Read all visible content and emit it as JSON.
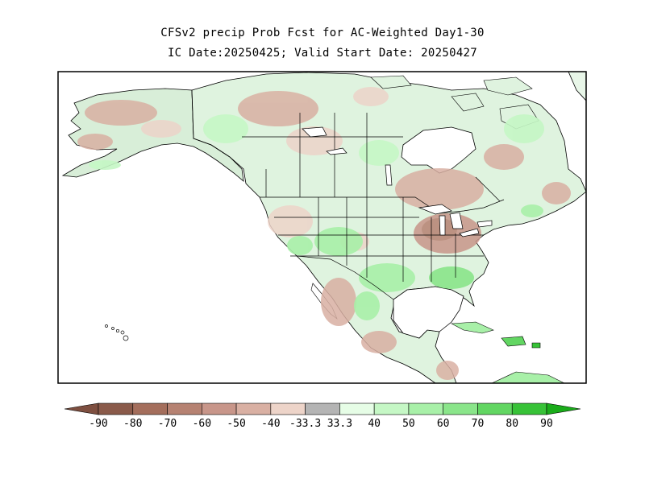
{
  "title": {
    "line1": "CFSv2 precip Prob Fcst for AC-Weighted Day1-30",
    "line2": "IC Date:20250425; Valid Start Date: 20250427"
  },
  "map": {
    "region": "North America",
    "variable": "precipitation probability (%)"
  },
  "legend": {
    "bins": [
      {
        "color": "#8a5a4a"
      },
      {
        "color": "#a46e5c"
      },
      {
        "color": "#b68272"
      },
      {
        "color": "#c8968a"
      },
      {
        "color": "#d9b0a3"
      },
      {
        "color": "#edd4c9"
      },
      {
        "color": "#b4b4b4"
      },
      {
        "color": "#e6fde6"
      },
      {
        "color": "#c5f7c5"
      },
      {
        "color": "#a8f0a8"
      },
      {
        "color": "#8ae58a"
      },
      {
        "color": "#62d662"
      },
      {
        "color": "#37c237"
      }
    ],
    "low_end_color": "#7e4f40",
    "high_end_color": "#1aac1a",
    "tick_labels": [
      "-90",
      "-80",
      "-70",
      "-60",
      "-50",
      "-40",
      "-33.3",
      "33.3",
      "40",
      "50",
      "60",
      "70",
      "80",
      "90"
    ]
  }
}
